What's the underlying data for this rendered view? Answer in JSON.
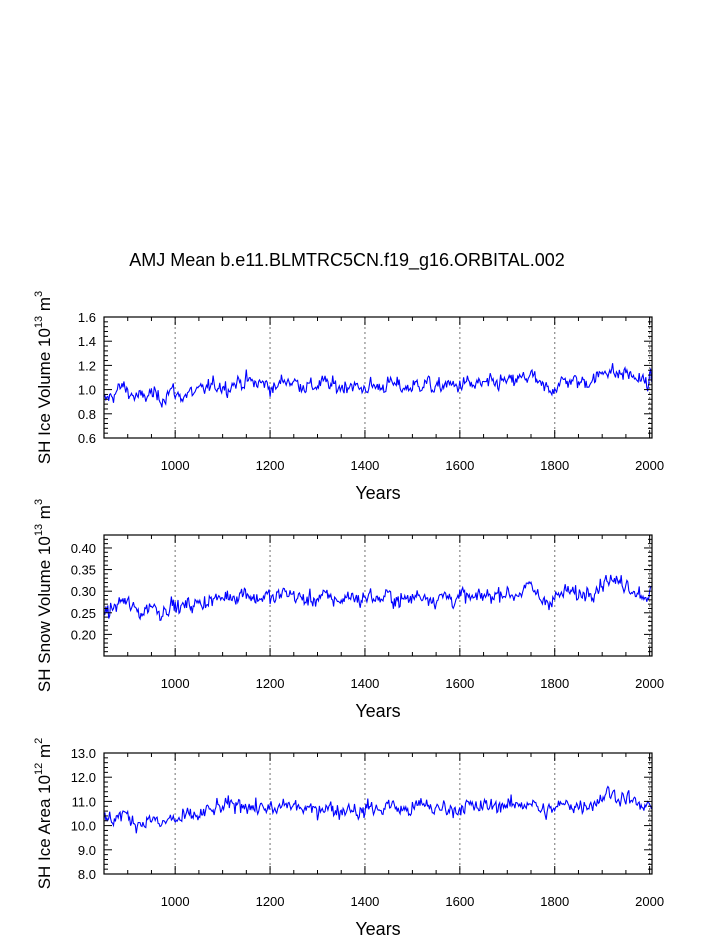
{
  "title": "AMJ Mean b.e11.BLMTRC5CN.f19_g16.ORBITAL.002",
  "chart_data": [
    {
      "type": "line",
      "ylabel_main": "SH Ice Volume 10",
      "ylabel_sup": "13",
      "ylabel_unit": "m",
      "ylabel_unit_sup": "3",
      "xlabel": "Years",
      "xlim": [
        850,
        2005
      ],
      "ylim": [
        0.6,
        1.6
      ],
      "xticks": [
        1000,
        1200,
        1400,
        1600,
        1800,
        2000
      ],
      "xtick_labels": [
        "1000",
        "1200",
        "1400",
        "1600",
        "1800",
        "2000"
      ],
      "yticks": [
        0.6,
        0.8,
        1.0,
        1.2,
        1.4,
        1.6
      ],
      "ytick_labels": [
        "0.6",
        "0.8",
        "1.0",
        "1.2",
        "1.4",
        "1.6"
      ],
      "grid": "vertical dotted",
      "series": [
        {
          "name": "SH Ice Volume",
          "color": "#0000ff",
          "x": [
            850,
            870,
            890,
            910,
            930,
            950,
            970,
            990,
            1010,
            1030,
            1050,
            1070,
            1090,
            1110,
            1130,
            1150,
            1170,
            1190,
            1210,
            1230,
            1250,
            1270,
            1290,
            1310,
            1330,
            1350,
            1370,
            1390,
            1410,
            1430,
            1450,
            1470,
            1490,
            1510,
            1530,
            1550,
            1570,
            1590,
            1610,
            1630,
            1650,
            1670,
            1690,
            1710,
            1730,
            1750,
            1770,
            1790,
            1810,
            1830,
            1850,
            1870,
            1890,
            1910,
            1930,
            1950,
            1970,
            1990,
            2005
          ],
          "values": [
            0.9,
            0.96,
            1.03,
            0.95,
            0.93,
            0.97,
            0.92,
            1.0,
            0.94,
            0.97,
            0.98,
            1.02,
            1.04,
            1.02,
            1.06,
            1.07,
            1.05,
            1.05,
            1.0,
            1.09,
            1.06,
            1.04,
            1.02,
            1.06,
            1.03,
            1.02,
            1.05,
            1.0,
            1.03,
            1.02,
            1.05,
            1.03,
            1.01,
            1.04,
            1.06,
            1.0,
            1.05,
            1.02,
            1.06,
            1.03,
            1.05,
            1.04,
            1.07,
            1.06,
            1.09,
            1.12,
            1.02,
            1.0,
            1.05,
            1.08,
            1.06,
            1.07,
            1.1,
            1.18,
            1.12,
            1.14,
            1.1,
            1.06,
            1.07
          ]
        }
      ]
    },
    {
      "type": "line",
      "ylabel_main": "SH Snow Volume 10",
      "ylabel_sup": "13",
      "ylabel_unit": "m",
      "ylabel_unit_sup": "3",
      "xlabel": "Years",
      "xlim": [
        850,
        2005
      ],
      "ylim": [
        0.15,
        0.43
      ],
      "xticks": [
        1000,
        1200,
        1400,
        1600,
        1800,
        2000
      ],
      "xtick_labels": [
        "1000",
        "1200",
        "1400",
        "1600",
        "1800",
        "2000"
      ],
      "yticks": [
        0.2,
        0.25,
        0.3,
        0.35,
        0.4
      ],
      "ytick_labels": [
        "0.20",
        "0.25",
        "0.30",
        "0.35",
        "0.40"
      ],
      "grid": "vertical dotted",
      "series": [
        {
          "name": "SH Snow Volume",
          "color": "#0000ff",
          "x": [
            850,
            870,
            890,
            910,
            930,
            950,
            970,
            990,
            1010,
            1030,
            1050,
            1070,
            1090,
            1110,
            1130,
            1150,
            1170,
            1190,
            1210,
            1230,
            1250,
            1270,
            1290,
            1310,
            1330,
            1350,
            1370,
            1390,
            1410,
            1430,
            1450,
            1470,
            1490,
            1510,
            1530,
            1550,
            1570,
            1590,
            1610,
            1630,
            1650,
            1670,
            1690,
            1710,
            1730,
            1750,
            1770,
            1790,
            1810,
            1830,
            1850,
            1870,
            1890,
            1910,
            1930,
            1950,
            1970,
            1990,
            2005
          ],
          "values": [
            0.25,
            0.26,
            0.28,
            0.26,
            0.25,
            0.27,
            0.25,
            0.27,
            0.26,
            0.27,
            0.27,
            0.28,
            0.28,
            0.29,
            0.29,
            0.3,
            0.28,
            0.29,
            0.28,
            0.3,
            0.29,
            0.28,
            0.28,
            0.29,
            0.28,
            0.28,
            0.29,
            0.28,
            0.29,
            0.28,
            0.29,
            0.28,
            0.28,
            0.29,
            0.29,
            0.28,
            0.29,
            0.28,
            0.29,
            0.28,
            0.29,
            0.29,
            0.3,
            0.29,
            0.3,
            0.31,
            0.28,
            0.28,
            0.29,
            0.3,
            0.29,
            0.3,
            0.31,
            0.33,
            0.32,
            0.32,
            0.3,
            0.29,
            0.3
          ]
        }
      ]
    },
    {
      "type": "line",
      "ylabel_main": "SH Ice Area 10",
      "ylabel_sup": "12",
      "ylabel_unit": "m",
      "ylabel_unit_sup": "2",
      "xlabel": "Years",
      "xlim": [
        850,
        2005
      ],
      "ylim": [
        8.0,
        13.0
      ],
      "xticks": [
        1000,
        1200,
        1400,
        1600,
        1800,
        2000
      ],
      "xtick_labels": [
        "1000",
        "1200",
        "1400",
        "1600",
        "1800",
        "2000"
      ],
      "yticks": [
        8.0,
        9.0,
        10.0,
        11.0,
        12.0,
        13.0
      ],
      "ytick_labels": [
        "8.0",
        "9.0",
        "10.0",
        "11.0",
        "12.0",
        "13.0"
      ],
      "grid": "vertical dotted",
      "series": [
        {
          "name": "SH Ice Area",
          "color": "#0000ff",
          "x": [
            850,
            870,
            890,
            910,
            930,
            950,
            970,
            990,
            1010,
            1030,
            1050,
            1070,
            1090,
            1110,
            1130,
            1150,
            1170,
            1190,
            1210,
            1230,
            1250,
            1270,
            1290,
            1310,
            1330,
            1350,
            1370,
            1390,
            1410,
            1430,
            1450,
            1470,
            1490,
            1510,
            1530,
            1550,
            1570,
            1590,
            1610,
            1630,
            1650,
            1670,
            1690,
            1710,
            1730,
            1750,
            1770,
            1790,
            1810,
            1830,
            1850,
            1870,
            1890,
            1910,
            1930,
            1950,
            1970,
            1990,
            2005
          ],
          "values": [
            10.2,
            10.3,
            10.5,
            10.2,
            10.1,
            10.3,
            10.0,
            10.3,
            10.2,
            10.4,
            10.4,
            10.6,
            10.7,
            10.8,
            10.9,
            10.9,
            10.7,
            10.8,
            10.5,
            10.9,
            10.8,
            10.7,
            10.6,
            10.8,
            10.7,
            10.6,
            10.8,
            10.5,
            10.8,
            10.6,
            10.9,
            10.7,
            10.6,
            10.8,
            10.9,
            10.6,
            10.8,
            10.6,
            10.9,
            10.7,
            10.8,
            10.8,
            10.9,
            10.8,
            10.9,
            11.0,
            10.6,
            10.6,
            10.8,
            10.9,
            10.8,
            10.9,
            11.0,
            11.4,
            11.2,
            11.2,
            10.9,
            10.7,
            10.8
          ]
        }
      ]
    }
  ]
}
